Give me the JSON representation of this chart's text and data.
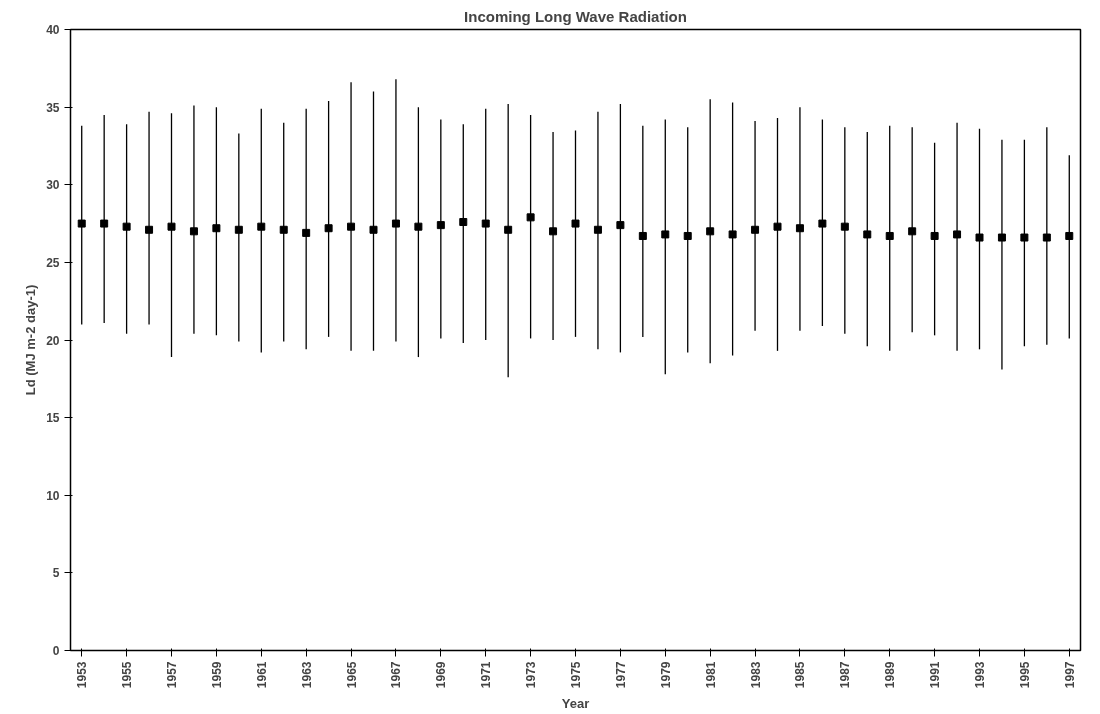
{
  "chart_data": {
    "type": "scatter",
    "title": "Incoming Long Wave Radiation",
    "xlabel": "Year",
    "ylabel": "Ld (MJ m-2 day-1)",
    "color": "#000000",
    "grid": false,
    "marker": "square",
    "x": [
      1953,
      1954,
      1955,
      1956,
      1957,
      1958,
      1959,
      1960,
      1961,
      1962,
      1963,
      1964,
      1965,
      1966,
      1967,
      1968,
      1969,
      1970,
      1971,
      1972,
      1973,
      1974,
      1975,
      1976,
      1977,
      1978,
      1979,
      1980,
      1981,
      1982,
      1983,
      1984,
      1985,
      1986,
      1987,
      1988,
      1989,
      1990,
      1991,
      1992,
      1993,
      1994,
      1995,
      1996,
      1997
    ],
    "values": [
      27.5,
      27.5,
      27.3,
      27.1,
      27.3,
      27.0,
      27.2,
      27.1,
      27.3,
      27.1,
      26.9,
      27.2,
      27.3,
      27.1,
      27.5,
      27.3,
      27.4,
      27.6,
      27.5,
      27.1,
      27.9,
      27.0,
      27.5,
      27.1,
      27.4,
      26.7,
      26.8,
      26.7,
      27.0,
      26.8,
      27.1,
      27.3,
      27.2,
      27.5,
      27.3,
      26.8,
      26.7,
      27.0,
      26.7,
      26.8,
      26.6,
      26.6,
      26.6,
      26.6,
      26.7
    ],
    "errors": [
      [
        21.0,
        33.8
      ],
      [
        21.1,
        34.5
      ],
      [
        20.4,
        33.9
      ],
      [
        21.0,
        34.7
      ],
      [
        18.9,
        34.6
      ],
      [
        20.4,
        35.1
      ],
      [
        20.3,
        35.0
      ],
      [
        19.9,
        33.3
      ],
      [
        19.2,
        34.9
      ],
      [
        19.9,
        34.0
      ],
      [
        19.4,
        34.9
      ],
      [
        20.2,
        35.4
      ],
      [
        19.3,
        36.6
      ],
      [
        19.3,
        36.0
      ],
      [
        19.9,
        36.8
      ],
      [
        18.9,
        35.0
      ],
      [
        20.1,
        34.2
      ],
      [
        19.8,
        33.9
      ],
      [
        20.0,
        34.9
      ],
      [
        17.6,
        35.2
      ],
      [
        20.1,
        34.5
      ],
      [
        20.0,
        33.4
      ],
      [
        20.2,
        33.5
      ],
      [
        19.4,
        34.7
      ],
      [
        19.2,
        35.2
      ],
      [
        20.2,
        33.8
      ],
      [
        17.8,
        34.2
      ],
      [
        19.2,
        33.7
      ],
      [
        18.5,
        35.5
      ],
      [
        19.0,
        35.3
      ],
      [
        20.6,
        34.1
      ],
      [
        19.3,
        34.3
      ],
      [
        20.6,
        35.0
      ],
      [
        20.9,
        34.2
      ],
      [
        20.4,
        33.7
      ],
      [
        19.6,
        33.4
      ],
      [
        19.3,
        33.8
      ],
      [
        20.5,
        33.7
      ],
      [
        20.3,
        32.7
      ],
      [
        19.3,
        34.0
      ],
      [
        19.4,
        33.6
      ],
      [
        18.1,
        32.9
      ],
      [
        19.6,
        32.9
      ],
      [
        19.7,
        33.7
      ],
      [
        20.1,
        31.9
      ]
    ],
    "xlim": [
      1952.5,
      1997.5
    ],
    "xticks": [
      1953,
      1955,
      1957,
      1959,
      1961,
      1963,
      1965,
      1967,
      1969,
      1971,
      1973,
      1975,
      1977,
      1979,
      1981,
      1983,
      1985,
      1987,
      1989,
      1991,
      1993,
      1995,
      1997
    ],
    "ylim": [
      0,
      40
    ],
    "yticks": [
      0,
      5,
      10,
      15,
      20,
      25,
      30,
      35,
      40
    ]
  }
}
